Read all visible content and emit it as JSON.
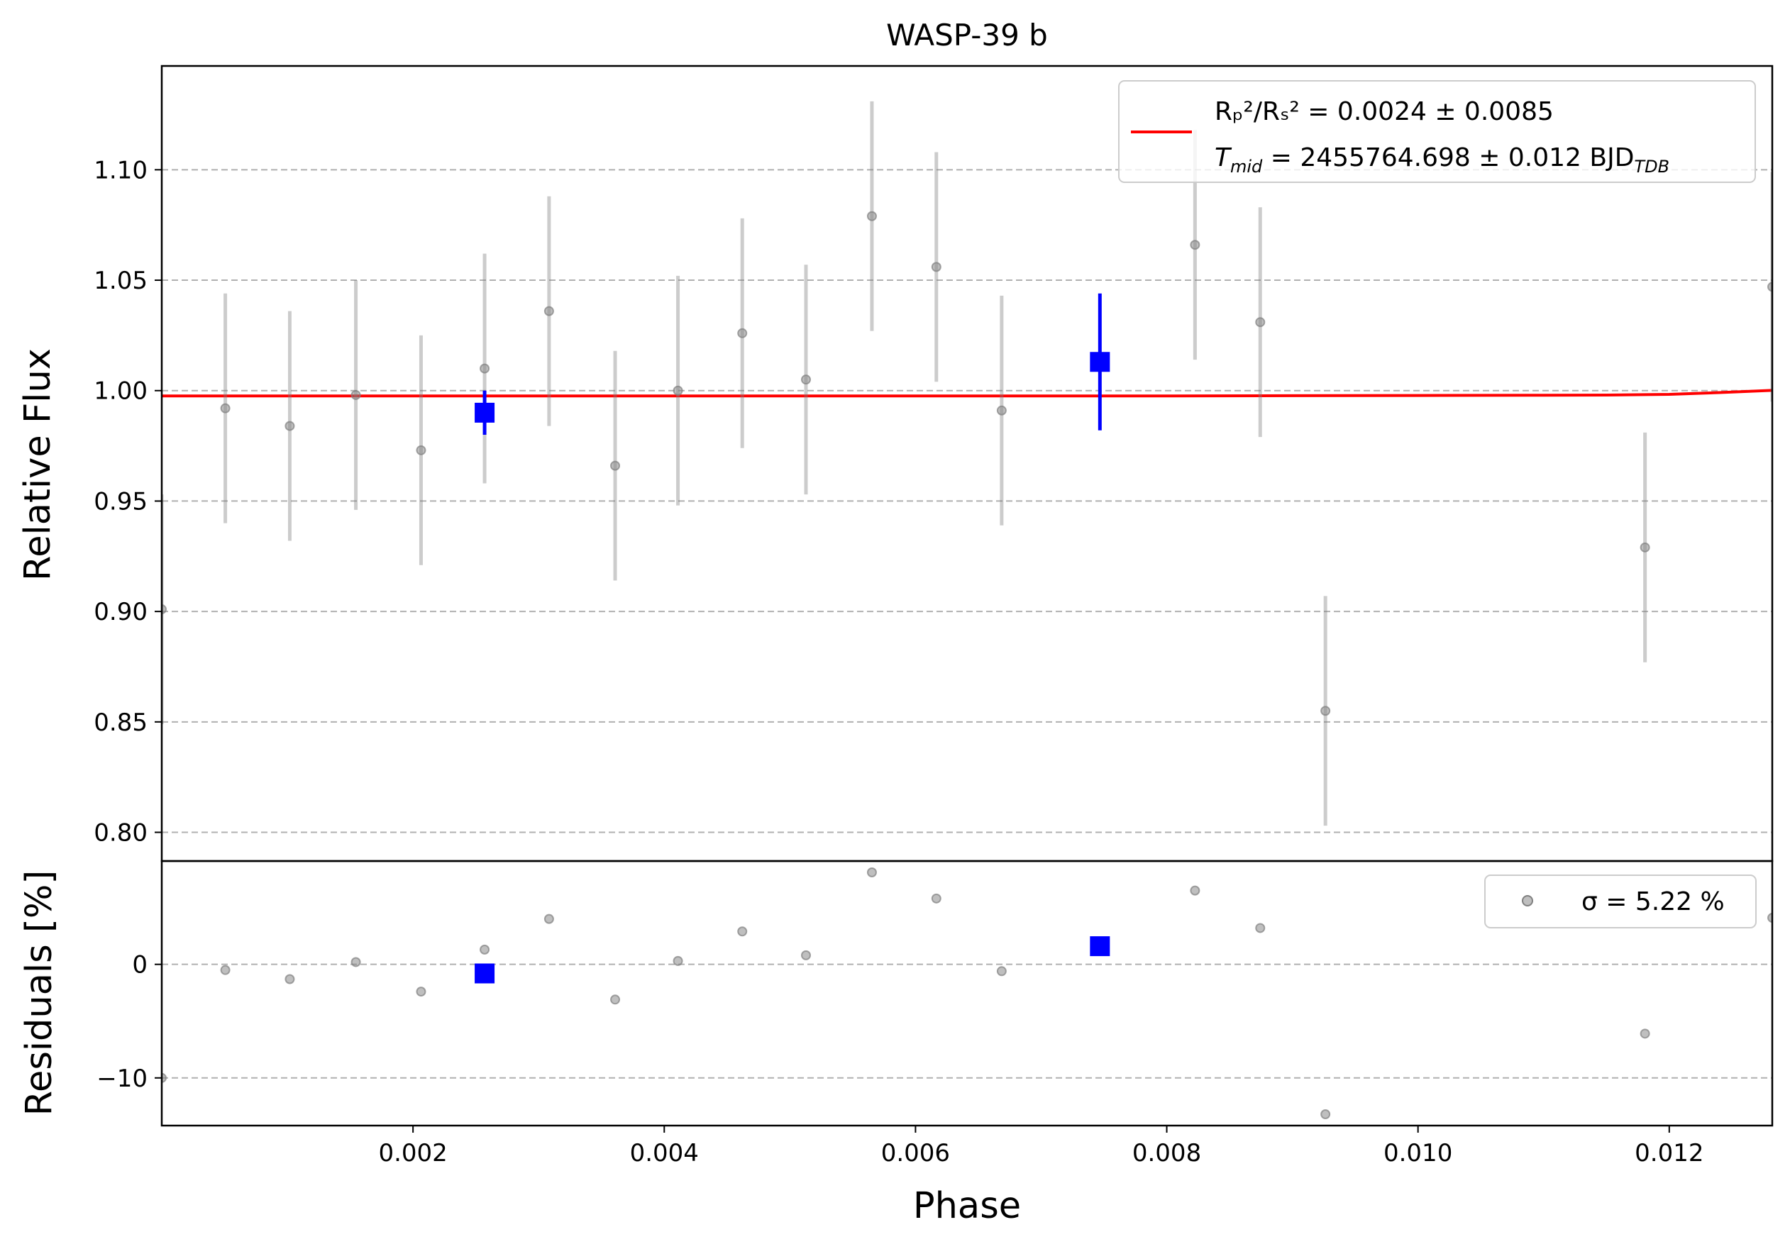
{
  "chart_data": {
    "type": "scatter",
    "title": "WASP-39 b",
    "xlabel": "Phase",
    "xlim": [
      0.0,
      0.01282
    ],
    "xticks": [
      "0.002",
      "0.004",
      "0.006",
      "0.008",
      "0.010",
      "0.012"
    ],
    "xtick_values": [
      0.002,
      0.004,
      0.006,
      0.008,
      0.01,
      0.012
    ],
    "grid": "horizontal dashed",
    "panels": {
      "flux": {
        "ylabel": "Relative Flux",
        "ylim": [
          0.787,
          1.147
        ],
        "yticks": [
          "0.80",
          "0.85",
          "0.90",
          "0.95",
          "1.00",
          "1.05",
          "1.10"
        ],
        "ytick_values": [
          0.8,
          0.85,
          0.9,
          0.95,
          1.0,
          1.05,
          1.1
        ],
        "series": [
          {
            "kind": "unbinned",
            "color": "#808080",
            "x": [
              0.0,
              0.000506,
              0.001019,
              0.001545,
              0.002064,
              0.00257,
              0.003083,
              0.003609,
              0.004109,
              0.004621,
              0.005128,
              0.005653,
              0.006166,
              0.006686,
              0.008225,
              0.008744,
              0.009263,
              0.011807,
              0.01282
            ],
            "y": [
              0.901,
              0.992,
              0.984,
              0.998,
              0.973,
              1.01,
              1.036,
              0.966,
              1.0,
              1.026,
              1.005,
              1.079,
              1.056,
              0.991,
              1.066,
              1.031,
              0.855,
              0.929,
              1.047
            ],
            "yerr": [
              0.052,
              0.052,
              0.052,
              0.052,
              0.052,
              0.052,
              0.052,
              0.052,
              0.052,
              0.052,
              0.052,
              0.052,
              0.052,
              0.052,
              0.052,
              0.052,
              0.052,
              0.052,
              0.052
            ]
          },
          {
            "kind": "binned",
            "color": "#0000ff",
            "x": [
              0.00257,
              0.007468
            ],
            "y": [
              0.99,
              1.013
            ],
            "yerr": [
              0.01,
              0.031
            ]
          },
          {
            "kind": "model",
            "color": "#ff0000",
            "x": [
              0.0,
              0.001,
              0.002,
              0.003,
              0.004,
              0.005,
              0.006,
              0.007,
              0.008,
              0.009,
              0.01,
              0.011,
              0.0115,
              0.012,
              0.0124,
              0.01282
            ],
            "y": [
              0.9976,
              0.9976,
              0.9976,
              0.9976,
              0.9976,
              0.9976,
              0.9976,
              0.9976,
              0.9976,
              0.9977,
              0.9978,
              0.9979,
              0.998,
              0.9983,
              0.9991,
              1.0001
            ]
          }
        ],
        "legend": {
          "placement": "top-right",
          "line1": "Rₚ²/Rₛ² = 0.0024 ± 0.0085",
          "line2_main": "T",
          "line2_sub": "mid",
          "line2_rest": " = 2455764.698 ± 0.012 BJD",
          "line2_unit_sub": "TDB"
        }
      },
      "residuals": {
        "ylabel": "Residuals [%]",
        "ylim": [
          -14.2,
          9.1
        ],
        "yticks": [
          "−10",
          "0"
        ],
        "ytick_values": [
          -10,
          0
        ],
        "series": [
          {
            "kind": "unbinned",
            "color": "#808080",
            "x": [
              0.0,
              0.000506,
              0.001019,
              0.001545,
              0.002064,
              0.00257,
              0.003083,
              0.003609,
              0.004109,
              0.004621,
              0.005128,
              0.005653,
              0.006166,
              0.006686,
              0.008225,
              0.008744,
              0.009263,
              0.011807,
              0.01282
            ],
            "y": [
              -10.0,
              -0.5,
              -1.3,
              0.2,
              -2.4,
              1.3,
              4.0,
              -3.1,
              0.3,
              2.9,
              0.8,
              8.1,
              5.8,
              -0.6,
              6.5,
              3.2,
              -13.2,
              -6.1,
              4.1
            ]
          },
          {
            "kind": "binned",
            "color": "#0000ff",
            "x": [
              0.00257,
              0.007468
            ],
            "y": [
              -0.8,
              1.6
            ]
          }
        ],
        "legend": {
          "placement": "top-right",
          "label": "σ = 5.22 %"
        }
      }
    }
  }
}
